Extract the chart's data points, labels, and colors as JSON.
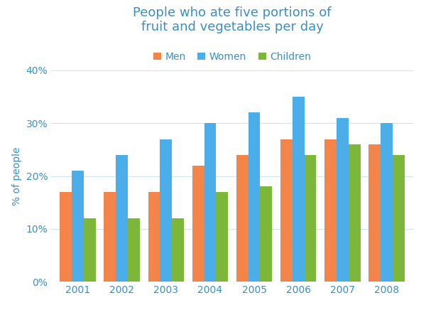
{
  "title": "People who ate five portions of\nfruit and vegetables per day",
  "ylabel": "% of people",
  "years": [
    2001,
    2002,
    2003,
    2004,
    2005,
    2006,
    2007,
    2008
  ],
  "men": [
    17,
    17,
    17,
    22,
    24,
    27,
    27,
    26
  ],
  "women": [
    21,
    24,
    27,
    30,
    32,
    35,
    31,
    30
  ],
  "children": [
    12,
    12,
    12,
    17,
    18,
    24,
    26,
    24
  ],
  "colors": {
    "men": "#F4854A",
    "women": "#4BAEE8",
    "children": "#7DB73A"
  },
  "legend_labels": [
    "Men",
    "Women",
    "Children"
  ],
  "ylim": [
    0,
    40
  ],
  "yticks": [
    0,
    10,
    20,
    30,
    40
  ],
  "title_color": "#3A8FC0",
  "axis_label_color": "#3A8FC0",
  "tick_color": "#3A8FC0",
  "grid_color": "#d0e4f0",
  "background_color": "#ffffff"
}
